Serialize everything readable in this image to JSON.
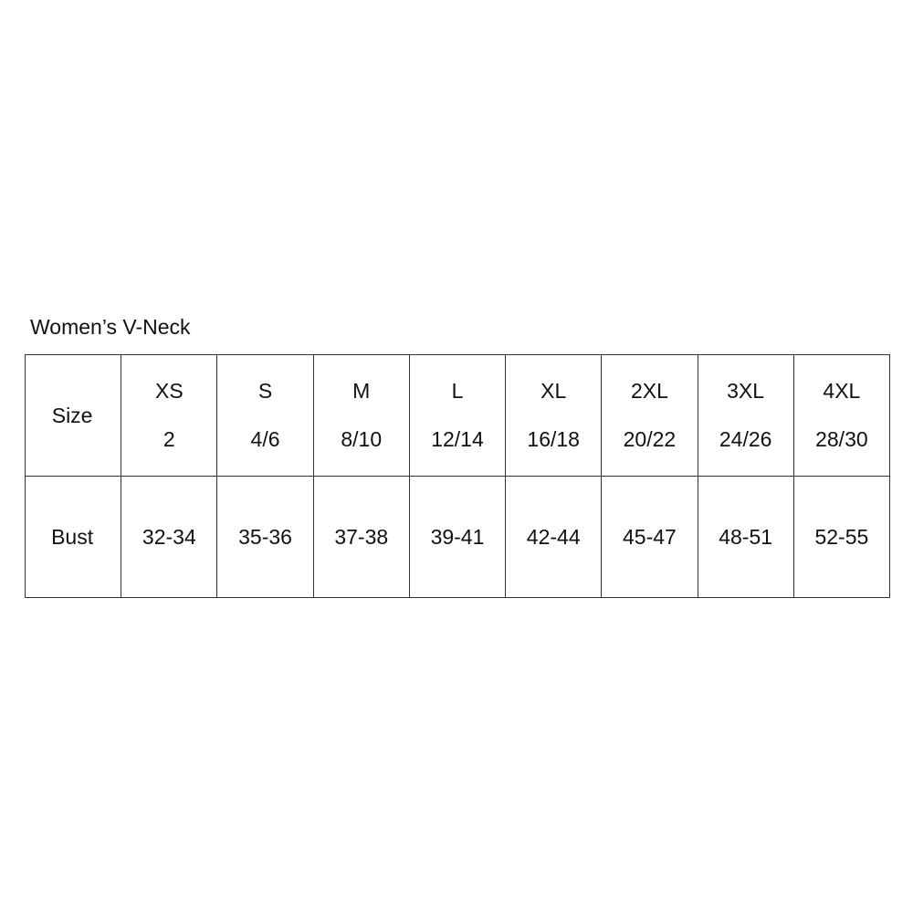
{
  "title": "Women’s V-Neck",
  "table": {
    "header_label": "Size",
    "row_label": "Bust",
    "sizes": [
      {
        "label": "XS",
        "number": "2",
        "bust": "32-34"
      },
      {
        "label": "S",
        "number": "4/6",
        "bust": "35-36"
      },
      {
        "label": "M",
        "number": "8/10",
        "bust": "37-38"
      },
      {
        "label": "L",
        "number": "12/14",
        "bust": "39-41"
      },
      {
        "label": "XL",
        "number": "16/18",
        "bust": "42-44"
      },
      {
        "label": "2XL",
        "number": "20/22",
        "bust": "45-47"
      },
      {
        "label": "3XL",
        "number": "24/26",
        "bust": "48-51"
      },
      {
        "label": "4XL",
        "number": "28/30",
        "bust": "52-55"
      }
    ]
  }
}
